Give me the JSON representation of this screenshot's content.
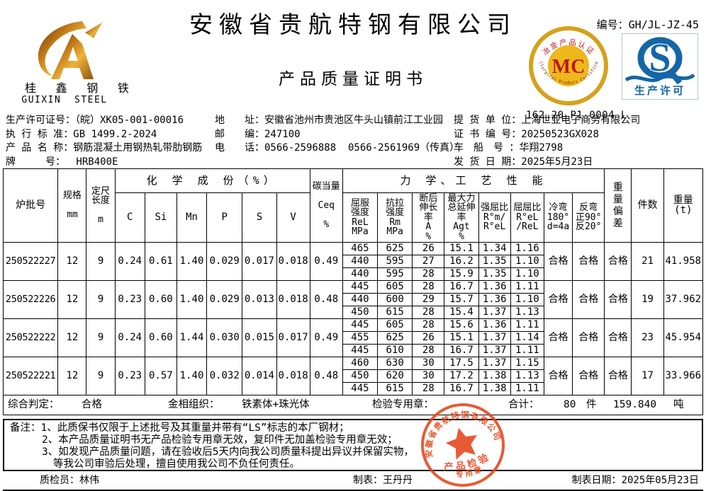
{
  "header": {
    "company": "安徽省贵航特钢有限公司",
    "doc_title": "产品质量证明书",
    "serial_label": "编号：",
    "serial": "GH/JL-JZ-45",
    "logo": {
      "cn": "桂 鑫 钢 铁",
      "en": "GUIXIN  STEEL"
    }
  },
  "badges": {
    "mc": {
      "label": "MC",
      "top_arc": "冶金产品认证",
      "bottom_arc": "Metallurgical Product Certification",
      "code": "162 20 P1 0004 L"
    },
    "sq": {
      "s_letter": "S",
      "caption": "生产许可"
    }
  },
  "info": {
    "left": [
      {
        "label": "生产许可证号：",
        "value": "（皖）XK05-001-00016"
      },
      {
        "label": "执 行 标 准：",
        "value": "GB 1499.2-2024"
      },
      {
        "label": "产 品 名 称：",
        "value": "钢筋混凝土用钢热轧带肋钢筋"
      },
      {
        "label": "牌　　　号：",
        "value": "　 HRB400E"
      }
    ],
    "mid": [
      {
        "label": "地　　址：",
        "value": "安徽省池州市贵池区牛头山镇前江工业园"
      },
      {
        "label": "邮　　编：",
        "value": "247100"
      },
      {
        "label": "电　　话：",
        "value": "0566-2596888  0566-2561969（传真）"
      }
    ],
    "right": [
      {
        "label": "提 货 单 位：",
        "value": "上海世亚电子商务有限公司"
      },
      {
        "label": "证 书 编 号：",
        "value": "20250523GX028"
      },
      {
        "label": "车　船　号 ：",
        "value": "华翔2798"
      },
      {
        "label": "发 货 日 期：",
        "value": "2025年5月23日"
      }
    ]
  },
  "table": {
    "group_chem": "化 学 成 份（%）",
    "group_mech": "力 学、工 艺 性 能",
    "head": {
      "heat": "炉批号",
      "spec": "规格\n\nmm",
      "len": "定尺\n长度\n\nm",
      "chem_cols": [
        "C",
        "Si",
        "Mn",
        "P",
        "S",
        "V"
      ],
      "ceq": "碳当量\n\nCeq\n\n%",
      "mech_cols": [
        "屈服\n强度\nReL\nMPa",
        "抗拉\n强度\nRm\nMPa",
        "断后\n伸长\n率\nA\n%",
        "最大力\n总延伸\n率\nAgt\n%",
        "强屈比\nR°m/\nR°eL",
        "屈屈比\nR°eL\n/ReL",
        "冷弯\n180°\nd=4a",
        "反弯\n正90°\n反20°"
      ],
      "wdev": "重\n量\n偏\n差",
      "pieces": "件数",
      "weight": "重量\n(t)"
    },
    "batches": [
      {
        "heat": "250522227",
        "spec": "12",
        "len": "9",
        "chem": [
          "0.24",
          "0.61",
          "1.40",
          "0.029",
          "0.017",
          "0.018"
        ],
        "ceq": "0.49",
        "mech": [
          [
            "465",
            "625",
            "26",
            "15.1",
            "1.34",
            "1.16"
          ],
          [
            "440",
            "595",
            "27",
            "16.2",
            "1.35",
            "1.10"
          ],
          [
            "440",
            "595",
            "28",
            "15.9",
            "1.35",
            "1.10"
          ]
        ],
        "cold_bend": "合格",
        "rev_bend": "合格",
        "weight_dev": "合格",
        "pieces": "21",
        "weight": "41.958"
      },
      {
        "heat": "250522226",
        "spec": "12",
        "len": "9",
        "chem": [
          "0.23",
          "0.60",
          "1.40",
          "0.029",
          "0.013",
          "0.018"
        ],
        "ceq": "0.48",
        "mech": [
          [
            "445",
            "605",
            "28",
            "16.7",
            "1.36",
            "1.11"
          ],
          [
            "440",
            "600",
            "29",
            "15.7",
            "1.36",
            "1.10"
          ],
          [
            "450",
            "615",
            "28",
            "15.4",
            "1.37",
            "1.13"
          ]
        ],
        "cold_bend": "合格",
        "rev_bend": "合格",
        "weight_dev": "合格",
        "pieces": "19",
        "weight": "37.962"
      },
      {
        "heat": "250522222",
        "spec": "12",
        "len": "9",
        "chem": [
          "0.24",
          "0.60",
          "1.44",
          "0.030",
          "0.015",
          "0.017"
        ],
        "ceq": "0.49",
        "mech": [
          [
            "445",
            "605",
            "28",
            "15.6",
            "1.36",
            "1.11"
          ],
          [
            "455",
            "625",
            "26",
            "15.1",
            "1.37",
            "1.14"
          ],
          [
            "445",
            "610",
            "28",
            "16.7",
            "1.37",
            "1.11"
          ]
        ],
        "cold_bend": "合格",
        "rev_bend": "合格",
        "weight_dev": "合格",
        "pieces": "23",
        "weight": "45.954"
      },
      {
        "heat": "250522221",
        "spec": "12",
        "len": "9",
        "chem": [
          "0.23",
          "0.57",
          "1.40",
          "0.032",
          "0.014",
          "0.018"
        ],
        "ceq": "0.48",
        "mech": [
          [
            "460",
            "630",
            "30",
            "17.5",
            "1.37",
            "1.15"
          ],
          [
            "450",
            "620",
            "30",
            "17.2",
            "1.38",
            "1.13"
          ],
          [
            "445",
            "615",
            "28",
            "16.7",
            "1.38",
            "1.11"
          ]
        ],
        "cold_bend": "合格",
        "rev_bend": "合格",
        "weight_dev": "合格",
        "pieces": "17",
        "weight": "33.966"
      }
    ]
  },
  "summary": {
    "judge_label": "综合判定：",
    "judge": "合格",
    "metallo_label": "金相组织：",
    "metallo": "铁素体+珠光体",
    "seal_label": "检验专用章：",
    "total_label": "合计：",
    "pieces": "80",
    "pieces_unit": "件",
    "weight": "159.840",
    "weight_unit": "吨"
  },
  "notes": {
    "label": "备注：",
    "lines": [
      "1、此质保书仅限于上述批号及其重量并带有“LS”标志的本厂钢材；",
      "2、本产品质量证明书无产品检验专用章无效，复印件无加盖检验专用章无效；",
      "3、如发现产品质量问题，请在验收后5天内向我公司质量科提出异议并保留实物，",
      "等我公司审验后处理，擅自使用我公司不负任何责任。"
    ]
  },
  "footer": {
    "inspector_label": "质检员：",
    "inspector": "林伟",
    "tabulator_label": "制表：",
    "tabulator": "王丹丹",
    "date_label": "制表日期：",
    "date": "2025年05月23日"
  },
  "stamp": {
    "arc_text": "安徽省贵航特钢有限公司",
    "line1": "产品检验",
    "line2": "专用章"
  }
}
